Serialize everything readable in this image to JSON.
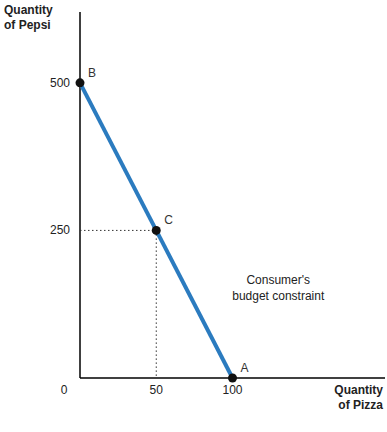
{
  "chart_data": {
    "type": "line",
    "x_label_lines": [
      "Quantity",
      "of Pizza"
    ],
    "y_label_lines": [
      "Quantity",
      "of Pepsi"
    ],
    "xlim": [
      0,
      200
    ],
    "xticks": [
      0,
      50,
      100
    ],
    "ylim": [
      0,
      620
    ],
    "yticks": [
      250,
      500
    ],
    "grid": false,
    "series": [
      {
        "x": [
          0,
          50,
          100
        ],
        "values": [
          500,
          250,
          0
        ],
        "point_labels": [
          "B",
          "C",
          "A"
        ],
        "color": "#2b7bbf",
        "marker": "circle",
        "line_style": "solid"
      }
    ],
    "reference_points": [
      {
        "x": 50,
        "y": 250
      }
    ],
    "annotations": [
      {
        "lines": [
          "Consumer's",
          "budget constraint"
        ],
        "x": 130,
        "y": 160
      }
    ]
  }
}
